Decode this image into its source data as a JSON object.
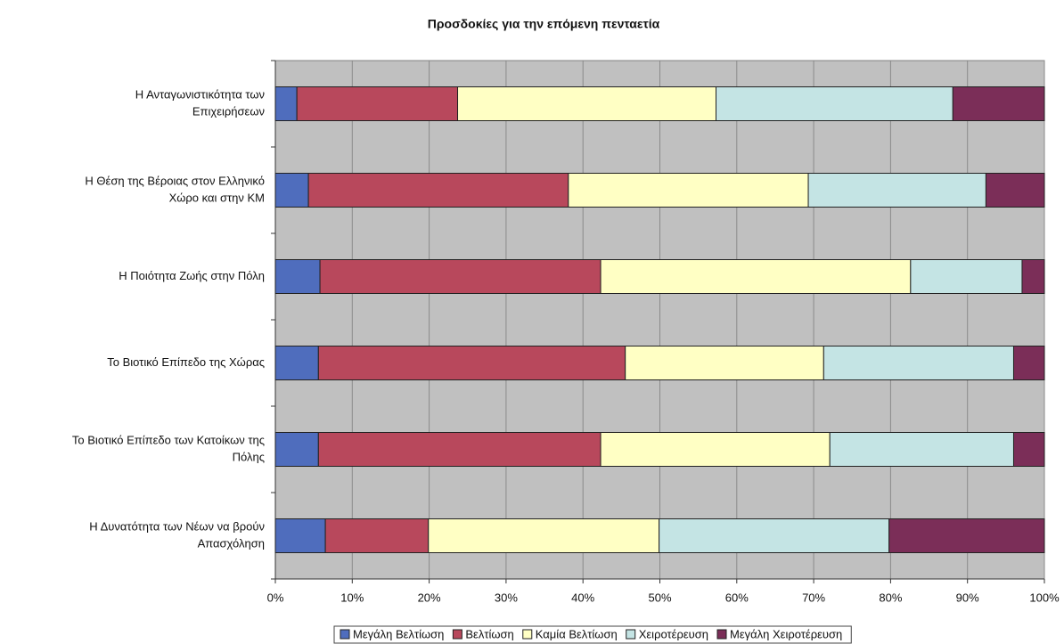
{
  "chart_data": {
    "type": "stacked-bar-horizontal",
    "title": "Προσδοκίες για την επόμενη πενταετία",
    "categories": [
      [
        "Η Ανταγωνιστικότητα των",
        "Επιχειρήσεων"
      ],
      [
        "Η Θέση της Βέροιας στον Ελληνικό",
        "Χώρο και στην ΚΜ"
      ],
      [
        "Η Ποιότητα Ζωής στην Πόλη"
      ],
      [
        "Το Βιοτικό Επίπεδο της Χώρας"
      ],
      [
        "Το Βιοτικό Επίπεδο των Κατοίκων της",
        "Πόλης"
      ],
      [
        "Η Δυνατότητα των Νέων να βρούν",
        "Απασχόληση"
      ]
    ],
    "series": [
      {
        "name": "Μεγάλη Βελτίωση",
        "color": "#4f6dbd",
        "values": [
          2.8,
          4.3,
          5.8,
          5.6,
          5.6,
          6.5
        ]
      },
      {
        "name": "Βελτίωση",
        "color": "#b8485c",
        "values": [
          20.9,
          33.8,
          36.5,
          39.9,
          36.7,
          13.4
        ]
      },
      {
        "name": "Καμία Βελτίωση",
        "color": "#ffffc4",
        "values": [
          33.6,
          31.2,
          40.3,
          25.8,
          29.8,
          30.0
        ]
      },
      {
        "name": "Χειροτέρευση",
        "color": "#c4e4e4",
        "values": [
          30.8,
          23.1,
          14.5,
          24.7,
          23.9,
          29.9
        ]
      },
      {
        "name": "Μεγάλη Χειροτέρευση",
        "color": "#7b2e58",
        "values": [
          11.9,
          7.6,
          2.9,
          4.0,
          4.0,
          20.2
        ]
      }
    ],
    "xlim": [
      0,
      100
    ],
    "xticks": [
      {
        "value": 0,
        "label": "0%"
      },
      {
        "value": 10,
        "label": "10%"
      },
      {
        "value": 20,
        "label": "20%"
      },
      {
        "value": 30,
        "label": "30%"
      },
      {
        "value": 40,
        "label": "40%"
      },
      {
        "value": 50,
        "label": "50%"
      },
      {
        "value": 60,
        "label": "60%"
      },
      {
        "value": 70,
        "label": "70%"
      },
      {
        "value": 80,
        "label": "80%"
      },
      {
        "value": 90,
        "label": "90%"
      },
      {
        "value": 100,
        "label": "100%"
      }
    ],
    "grid": true,
    "legend": "bottom"
  }
}
